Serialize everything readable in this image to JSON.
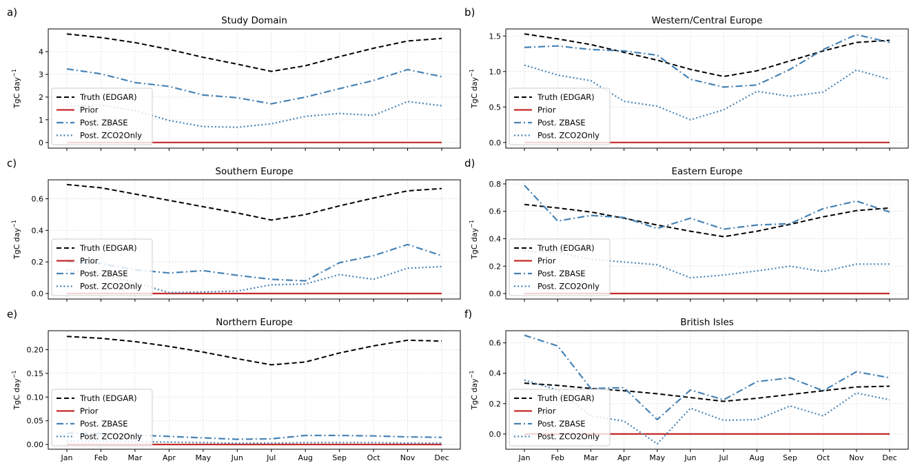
{
  "figure": {
    "months": [
      "Jan",
      "Feb",
      "Mar",
      "Apr",
      "May",
      "Jun",
      "Jul",
      "Aug",
      "Sep",
      "Oct",
      "Nov",
      "Dec"
    ],
    "ylabel": "TgC day",
    "ylabel_exp": "−1",
    "legend": [
      "Truth (EDGAR)",
      "Prior",
      "Post. ZBASE",
      "Post. ZCO2Only"
    ],
    "colors": {
      "truth": "#000000",
      "prior": "#c62828",
      "zbase": "#4682b4",
      "zco2": "#4682b4"
    }
  },
  "chart_data": [
    {
      "type": "line",
      "panel": "a)",
      "title": "Study Domain",
      "categories": [
        "Jan",
        "Feb",
        "Mar",
        "Apr",
        "May",
        "Jun",
        "Jul",
        "Aug",
        "Sep",
        "Oct",
        "Nov",
        "Dec"
      ],
      "ylim": [
        -0.25,
        5.0
      ],
      "yticks": [
        0,
        1,
        2,
        3,
        4
      ],
      "ytick_labels": [
        "0",
        "1",
        "2",
        "3",
        "4"
      ],
      "grid": true,
      "legend_position": "lower-left",
      "series": [
        {
          "name": "Truth (EDGAR)",
          "style": "dashed",
          "values": [
            4.78,
            4.62,
            4.4,
            4.1,
            3.75,
            3.45,
            3.13,
            3.38,
            3.78,
            4.15,
            4.47,
            4.58
          ]
        },
        {
          "name": "Prior",
          "style": "solid",
          "values": [
            0,
            0,
            0,
            0,
            0,
            0,
            0,
            0,
            0,
            0,
            0,
            0
          ]
        },
        {
          "name": "Post. ZBASE",
          "style": "dashdot",
          "values": [
            3.24,
            3.02,
            2.64,
            2.47,
            2.09,
            1.97,
            1.7,
            2.0,
            2.37,
            2.73,
            3.21,
            2.9
          ]
        },
        {
          "name": "Post. ZCO2Only",
          "style": "dotted",
          "values": [
            1.6,
            1.65,
            1.4,
            0.97,
            0.7,
            0.67,
            0.82,
            1.15,
            1.28,
            1.19,
            1.8,
            1.62
          ]
        }
      ]
    },
    {
      "type": "line",
      "panel": "b)",
      "title": "Western/Central Europe",
      "categories": [
        "Jan",
        "Feb",
        "Mar",
        "Apr",
        "May",
        "Jun",
        "Jul",
        "Aug",
        "Sep",
        "Oct",
        "Nov",
        "Dec"
      ],
      "ylim": [
        -0.08,
        1.6
      ],
      "yticks": [
        0,
        0.5,
        1.0,
        1.5
      ],
      "ytick_labels": [
        "0.0",
        "0.5",
        "1.0",
        "1.5"
      ],
      "grid": true,
      "legend_position": "lower-left",
      "series": [
        {
          "name": "Truth (EDGAR)",
          "style": "dashed",
          "values": [
            1.53,
            1.46,
            1.38,
            1.27,
            1.16,
            1.03,
            0.93,
            1.01,
            1.15,
            1.29,
            1.41,
            1.44
          ]
        },
        {
          "name": "Prior",
          "style": "solid",
          "values": [
            0,
            0,
            0,
            0,
            0,
            0,
            0,
            0,
            0,
            0,
            0,
            0
          ]
        },
        {
          "name": "Post. ZBASE",
          "style": "dashdot",
          "values": [
            1.34,
            1.36,
            1.31,
            1.29,
            1.23,
            0.89,
            0.78,
            0.81,
            1.03,
            1.31,
            1.52,
            1.41
          ]
        },
        {
          "name": "Post. ZCO2Only",
          "style": "dotted",
          "values": [
            1.09,
            0.95,
            0.87,
            0.58,
            0.51,
            0.32,
            0.46,
            0.72,
            0.65,
            0.71,
            1.02,
            0.89
          ]
        }
      ]
    },
    {
      "type": "line",
      "panel": "c)",
      "title": "Southern Europe",
      "categories": [
        "Jan",
        "Feb",
        "Mar",
        "Apr",
        "May",
        "Jun",
        "Jul",
        "Aug",
        "Sep",
        "Oct",
        "Nov",
        "Dec"
      ],
      "ylim": [
        -0.035,
        0.72
      ],
      "yticks": [
        0,
        0.2,
        0.4,
        0.6
      ],
      "ytick_labels": [
        "0.0",
        "0.2",
        "0.4",
        "0.6"
      ],
      "grid": true,
      "legend_position": "lower-left",
      "series": [
        {
          "name": "Truth (EDGAR)",
          "style": "dashed",
          "values": [
            0.69,
            0.67,
            0.63,
            0.59,
            0.55,
            0.51,
            0.465,
            0.5,
            0.555,
            0.605,
            0.65,
            0.665
          ]
        },
        {
          "name": "Prior",
          "style": "solid",
          "values": [
            0,
            0,
            0,
            0,
            0,
            0,
            0,
            0,
            0,
            0,
            0,
            0
          ]
        },
        {
          "name": "Post. ZBASE",
          "style": "dashdot",
          "values": [
            0.2,
            0.19,
            0.15,
            0.13,
            0.145,
            0.115,
            0.09,
            0.08,
            0.195,
            0.24,
            0.31,
            0.24
          ]
        },
        {
          "name": "Post. ZCO2Only",
          "style": "dotted",
          "values": [
            0.15,
            0.12,
            0.07,
            0.005,
            0.01,
            0.015,
            0.055,
            0.06,
            0.12,
            0.09,
            0.16,
            0.17
          ]
        }
      ]
    },
    {
      "type": "line",
      "panel": "d)",
      "title": "Eastern Europe",
      "categories": [
        "Jan",
        "Feb",
        "Mar",
        "Apr",
        "May",
        "Jun",
        "Jul",
        "Aug",
        "Sep",
        "Oct",
        "Nov",
        "Dec"
      ],
      "ylim": [
        -0.04,
        0.83
      ],
      "yticks": [
        0,
        0.2,
        0.4,
        0.6,
        0.8
      ],
      "ytick_labels": [
        "0.0",
        "0.2",
        "0.4",
        "0.6",
        "0.8"
      ],
      "grid": true,
      "legend_position": "lower-left",
      "series": [
        {
          "name": "Truth (EDGAR)",
          "style": "dashed",
          "values": [
            0.65,
            0.625,
            0.595,
            0.55,
            0.5,
            0.455,
            0.415,
            0.455,
            0.505,
            0.56,
            0.605,
            0.625
          ]
        },
        {
          "name": "Prior",
          "style": "solid",
          "values": [
            0,
            0,
            0,
            0,
            0,
            0,
            0,
            0,
            0,
            0,
            0,
            0
          ]
        },
        {
          "name": "Post. ZBASE",
          "style": "dashdot",
          "values": [
            0.79,
            0.53,
            0.57,
            0.555,
            0.475,
            0.55,
            0.47,
            0.5,
            0.51,
            0.62,
            0.675,
            0.595
          ]
        },
        {
          "name": "Post. ZCO2Only",
          "style": "dotted",
          "values": [
            0.31,
            0.3,
            0.25,
            0.23,
            0.21,
            0.115,
            0.135,
            0.165,
            0.2,
            0.16,
            0.215,
            0.215
          ]
        }
      ]
    },
    {
      "type": "line",
      "panel": "e)",
      "title": "Northern Europe",
      "categories": [
        "Jan",
        "Feb",
        "Mar",
        "Apr",
        "May",
        "Jun",
        "Jul",
        "Aug",
        "Sep",
        "Oct",
        "Nov",
        "Dec"
      ],
      "ylim": [
        -0.01,
        0.24
      ],
      "yticks": [
        0,
        0.05,
        0.1,
        0.15,
        0.2
      ],
      "ytick_labels": [
        "0.00",
        "0.05",
        "0.10",
        "0.15",
        "0.20"
      ],
      "grid": true,
      "legend_position": "lower-left",
      "series": [
        {
          "name": "Truth (EDGAR)",
          "style": "dashed",
          "values": [
            0.228,
            0.224,
            0.217,
            0.207,
            0.195,
            0.181,
            0.168,
            0.174,
            0.193,
            0.208,
            0.22,
            0.218
          ]
        },
        {
          "name": "Prior",
          "style": "solid",
          "values": [
            0,
            0,
            0,
            0,
            0,
            0,
            0,
            0,
            0,
            0,
            0,
            0
          ]
        },
        {
          "name": "Post. ZBASE",
          "style": "dashdot",
          "values": [
            0.024,
            0.023,
            0.02,
            0.017,
            0.014,
            0.011,
            0.012,
            0.019,
            0.019,
            0.018,
            0.016,
            0.015
          ]
        },
        {
          "name": "Post. ZCO2Only",
          "style": "dotted",
          "values": [
            0.007,
            0.007,
            0.006,
            0.005,
            0.004,
            0.003,
            0.003,
            0.004,
            0.004,
            0.004,
            0.003,
            0.003
          ]
        }
      ]
    },
    {
      "type": "line",
      "panel": "f)",
      "title": "British Isles",
      "categories": [
        "Jan",
        "Feb",
        "Mar",
        "Apr",
        "May",
        "Jun",
        "Jul",
        "Aug",
        "Sep",
        "Oct",
        "Nov",
        "Dec"
      ],
      "ylim": [
        -0.1,
        0.68
      ],
      "yticks": [
        0,
        0.2,
        0.4,
        0.6
      ],
      "ytick_labels": [
        "0.0",
        "0.2",
        "0.4",
        "0.6"
      ],
      "grid": true,
      "legend_position": "lower-left",
      "series": [
        {
          "name": "Truth (EDGAR)",
          "style": "dashed",
          "values": [
            0.335,
            0.32,
            0.3,
            0.285,
            0.265,
            0.24,
            0.215,
            0.235,
            0.26,
            0.285,
            0.31,
            0.315
          ]
        },
        {
          "name": "Prior",
          "style": "solid",
          "values": [
            0,
            0,
            0,
            0,
            0,
            0,
            0,
            0,
            0,
            0,
            0,
            0
          ]
        },
        {
          "name": "Post. ZBASE",
          "style": "dashdot",
          "values": [
            0.65,
            0.58,
            0.3,
            0.305,
            0.095,
            0.29,
            0.225,
            0.345,
            0.37,
            0.285,
            0.41,
            0.37
          ]
        },
        {
          "name": "Post. ZCO2Only",
          "style": "dotted",
          "values": [
            0.355,
            0.29,
            0.12,
            0.085,
            -0.065,
            0.17,
            0.09,
            0.095,
            0.185,
            0.12,
            0.27,
            0.225
          ]
        }
      ]
    }
  ]
}
